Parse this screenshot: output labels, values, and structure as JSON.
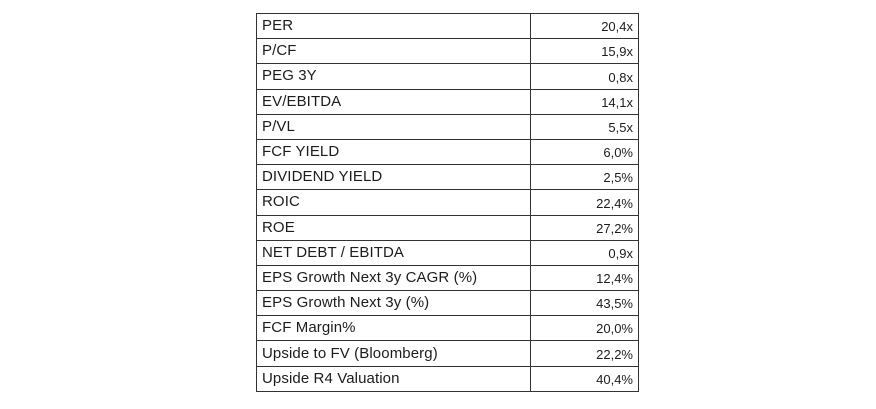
{
  "colors": {
    "background": "#ffffff",
    "border": "#333333",
    "text": "#1c1c1c"
  },
  "table": {
    "rows": [
      {
        "label": "PER",
        "value": "20,4x"
      },
      {
        "label": "P/CF",
        "value": "15,9x"
      },
      {
        "label": "PEG 3Y",
        "value": "0,8x"
      },
      {
        "label": "EV/EBITDA",
        "value": "14,1x"
      },
      {
        "label": "P/VL",
        "value": "5,5x"
      },
      {
        "label": "FCF YIELD",
        "value": "6,0%"
      },
      {
        "label": "DIVIDEND YIELD",
        "value": "2,5%"
      },
      {
        "label": "ROIC",
        "value": "22,4%"
      },
      {
        "label": "ROE",
        "value": "27,2%"
      },
      {
        "label": "NET DEBT / EBITDA",
        "value": "0,9x"
      },
      {
        "label": "EPS Growth Next 3y CAGR (%)",
        "value": "12,4%"
      },
      {
        "label": "EPS Growth Next 3y (%)",
        "value": "43,5%"
      },
      {
        "label": "FCF Margin%",
        "value": "20,0%"
      },
      {
        "label": "Upside to FV (Bloomberg)",
        "value": "22,2%"
      },
      {
        "label": "Upside R4 Valuation",
        "value": "40,4%"
      }
    ]
  },
  "chart_data": {
    "type": "table",
    "rows": [
      [
        "PER",
        "20,4x"
      ],
      [
        "P/CF",
        "15,9x"
      ],
      [
        "PEG 3Y",
        "0,8x"
      ],
      [
        "EV/EBITDA",
        "14,1x"
      ],
      [
        "P/VL",
        "5,5x"
      ],
      [
        "FCF YIELD",
        "6,0%"
      ],
      [
        "DIVIDEND YIELD",
        "2,5%"
      ],
      [
        "ROIC",
        "22,4%"
      ],
      [
        "ROE",
        "27,2%"
      ],
      [
        "NET DEBT / EBITDA",
        "0,9x"
      ],
      [
        "EPS Growth Next 3y CAGR (%)",
        "12,4%"
      ],
      [
        "EPS Growth Next 3y (%)",
        "43,5%"
      ],
      [
        "FCF Margin%",
        "20,0%"
      ],
      [
        "Upside to FV (Bloomberg)",
        "22,2%"
      ],
      [
        "Upside R4 Valuation",
        "40,4%"
      ]
    ]
  }
}
